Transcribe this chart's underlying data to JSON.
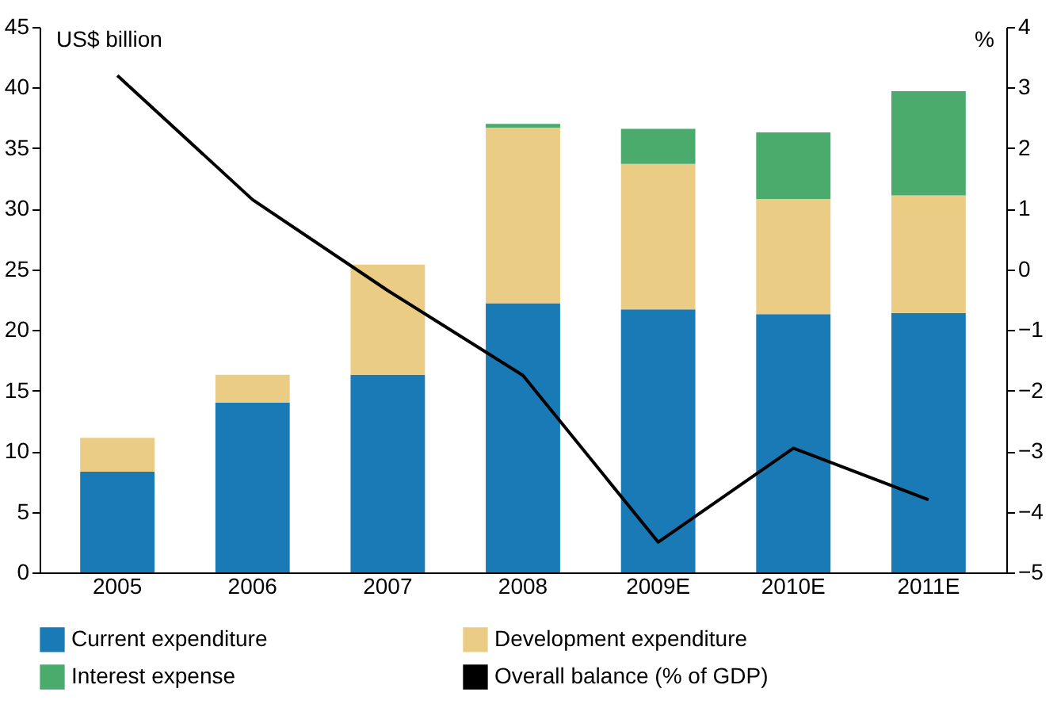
{
  "chart_data": {
    "type": "bar",
    "stacked": true,
    "categories": [
      "2005",
      "2006",
      "2007",
      "2008",
      "2009E",
      "2010E",
      "2011E"
    ],
    "ylabel": "US$ billion",
    "y2label": "%",
    "ylim": [
      0,
      45
    ],
    "yticks": [
      0,
      5,
      10,
      15,
      20,
      25,
      30,
      35,
      40,
      45
    ],
    "y2lim": [
      -5,
      4
    ],
    "y2ticks": [
      -5,
      -4,
      -3,
      -2,
      -1,
      0,
      1,
      2,
      3,
      4
    ],
    "grid": false,
    "legend": "bottom",
    "series": [
      {
        "name": "Current expenditure",
        "color": "#1a7ab5",
        "values": [
          8.3,
          14.0,
          16.3,
          22.2,
          21.7,
          21.3,
          21.4
        ]
      },
      {
        "name": "Development expenditure",
        "color": "#ebcc84",
        "values": [
          2.8,
          2.3,
          9.1,
          14.5,
          12.0,
          9.5,
          9.7
        ]
      },
      {
        "name": "Interest expense",
        "color": "#4aab6d",
        "values": [
          null,
          null,
          null,
          0.3,
          2.9,
          5.5,
          8.6
        ]
      },
      {
        "name": "Overall balance (% of GDP)",
        "color": "#000000",
        "type": "line",
        "axis": "y2",
        "values": [
          3.2,
          1.15,
          -0.35,
          -1.75,
          -4.5,
          -2.95,
          -3.8
        ]
      }
    ]
  }
}
